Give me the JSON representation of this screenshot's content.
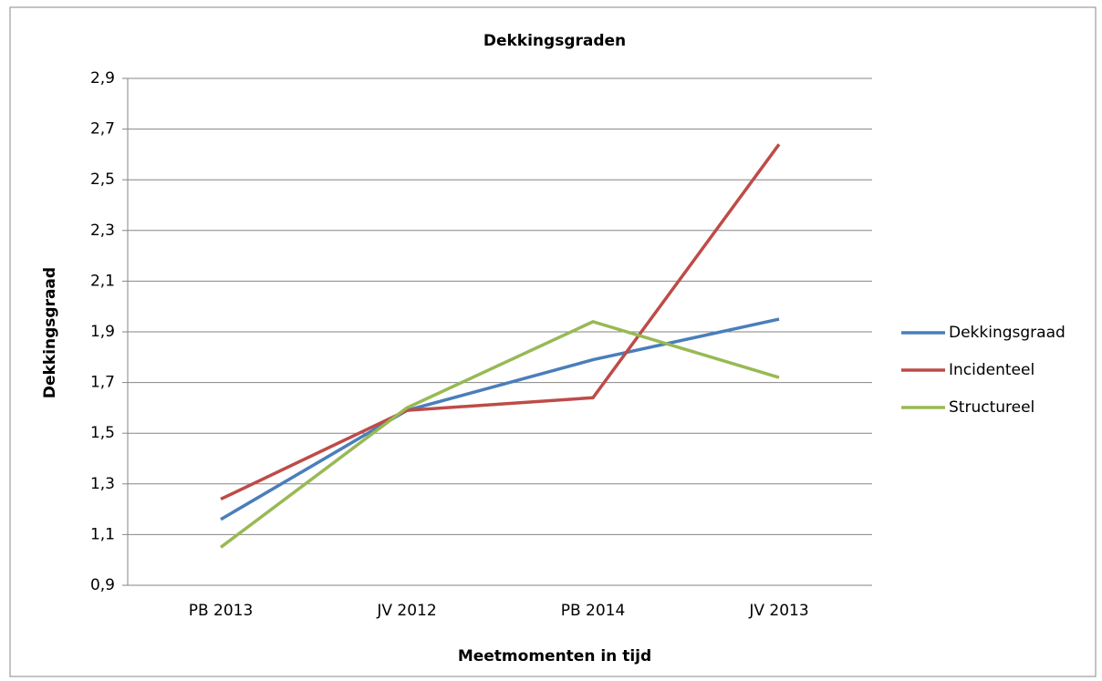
{
  "chart_data": {
    "type": "line",
    "title": "Dekkingsgraden",
    "y_label": "Dekkingsgraad",
    "x_label": "Meetmomenten in tijd",
    "categories": [
      "PB 2013",
      "JV 2012",
      "PB 2014",
      "JV 2013"
    ],
    "series": [
      {
        "name": "Dekkingsgraad",
        "color": "#4a7ebb",
        "values": [
          1.16,
          1.59,
          1.79,
          1.95
        ]
      },
      {
        "name": "Incidenteel",
        "color": "#be4b48",
        "values": [
          1.24,
          1.59,
          1.64,
          2.64
        ]
      },
      {
        "name": "Structureel",
        "color": "#98b954",
        "values": [
          1.05,
          1.6,
          1.94,
          1.72
        ]
      }
    ],
    "ylim": [
      0.9,
      2.9
    ],
    "yticks": [
      {
        "value": 0.9,
        "label": "0,9"
      },
      {
        "value": 1.1,
        "label": "1,1"
      },
      {
        "value": 1.3,
        "label": "1,3"
      },
      {
        "value": 1.5,
        "label": "1,5"
      },
      {
        "value": 1.7,
        "label": "1,7"
      },
      {
        "value": 1.9,
        "label": "1,9"
      },
      {
        "value": 2.1,
        "label": "2,1"
      },
      {
        "value": 2.3,
        "label": "2,3"
      },
      {
        "value": 2.5,
        "label": "2,5"
      },
      {
        "value": 2.7,
        "label": "2,7"
      },
      {
        "value": 2.9,
        "label": "2,9"
      }
    ],
    "grid": true,
    "legend": "right"
  }
}
